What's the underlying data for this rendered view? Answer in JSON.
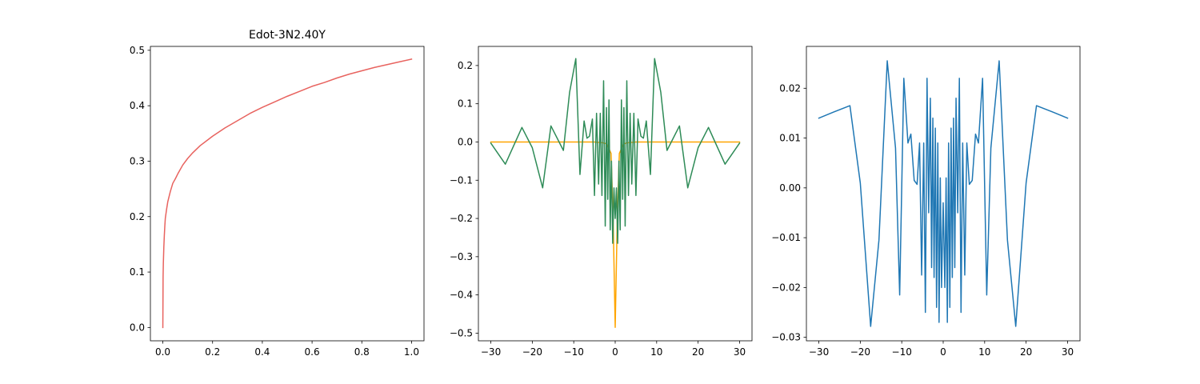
{
  "chart_data": [
    {
      "type": "line",
      "title": "Edot-3N2.40Y",
      "xlim": [
        -0.05,
        1.05
      ],
      "ylim": [
        -0.024,
        0.507
      ],
      "xticks": [
        0.0,
        0.2,
        0.4,
        0.6,
        0.8,
        1.0
      ],
      "xtick_labels": [
        "0.0",
        "0.2",
        "0.4",
        "0.6",
        "0.8",
        "1.0"
      ],
      "yticks": [
        0.0,
        0.1,
        0.2,
        0.3,
        0.4,
        0.5
      ],
      "ytick_labels": [
        "0.0",
        "0.1",
        "0.2",
        "0.3",
        "0.4",
        "0.5"
      ],
      "grid": false,
      "series": [
        {
          "color": "#e8635f",
          "x": [
            0,
            0.001,
            0.002,
            0.004,
            0.006,
            0.008,
            0.01,
            0.015,
            0.02,
            0.03,
            0.04,
            0.05,
            0.06,
            0.08,
            0.1,
            0.12,
            0.15,
            0.2,
            0.25,
            0.3,
            0.35,
            0.4,
            0.45,
            0.5,
            0.55,
            0.6,
            0.65,
            0.7,
            0.75,
            0.8,
            0.85,
            0.9,
            0.95,
            1.0
          ],
          "y": [
            0,
            0.091,
            0.115,
            0.145,
            0.166,
            0.183,
            0.197,
            0.213,
            0.227,
            0.245,
            0.26,
            0.268,
            0.277,
            0.293,
            0.305,
            0.315,
            0.328,
            0.345,
            0.36,
            0.373,
            0.386,
            0.397,
            0.407,
            0.417,
            0.426,
            0.435,
            0.442,
            0.45,
            0.457,
            0.463,
            0.469,
            0.474,
            0.479,
            0.484
          ]
        }
      ]
    },
    {
      "type": "line",
      "title": "",
      "xlim": [
        -33,
        33
      ],
      "ylim": [
        -0.52,
        0.25
      ],
      "xticks": [
        -30,
        -20,
        -10,
        0,
        10,
        20,
        30
      ],
      "xtick_labels": [
        "−30",
        "−20",
        "−10",
        "0",
        "10",
        "20",
        "30"
      ],
      "yticks": [
        -0.5,
        -0.4,
        -0.3,
        -0.2,
        -0.1,
        0.0,
        0.1,
        0.2
      ],
      "ytick_labels": [
        "−0.5",
        "−0.4",
        "−0.3",
        "−0.2",
        "−0.1",
        "0.0",
        "0.1",
        "0.2"
      ],
      "grid": false,
      "series": [
        {
          "color": "#ffa500",
          "x": [
            -30,
            -5,
            -3,
            -2,
            -1,
            -0.5,
            0,
            0.5,
            1,
            2,
            3,
            5,
            30
          ],
          "y": [
            0,
            0,
            -0.002,
            -0.005,
            -0.03,
            -0.2,
            -0.485,
            -0.2,
            -0.03,
            -0.005,
            -0.002,
            0,
            0
          ]
        },
        {
          "color": "#2e8b57",
          "x": [
            -30,
            -26.5,
            -22.5,
            -20,
            -17.5,
            -15.5,
            -12.5,
            -11,
            -9.5,
            -8.5,
            -7.5,
            -6.8,
            -6.2,
            -5.5,
            -5,
            -4.5,
            -4,
            -3.6,
            -3.2,
            -2.8,
            -2.4,
            -2.1,
            -1.8,
            -1.5,
            -1.2,
            -0.9,
            -0.6,
            -0.3,
            0,
            0.3,
            0.6,
            0.9,
            1.2,
            1.5,
            1.8,
            2.1,
            2.4,
            2.8,
            3.2,
            3.6,
            4,
            4.5,
            5,
            5.5,
            6.2,
            6.8,
            7.5,
            8.5,
            9.5,
            11,
            12.5,
            15.5,
            17.5,
            20,
            22.5,
            26.5,
            30
          ],
          "y": [
            -0.003,
            -0.058,
            0.038,
            -0.015,
            -0.12,
            0.042,
            -0.022,
            0.13,
            0.218,
            -0.085,
            0.055,
            0.01,
            0.015,
            0.06,
            -0.14,
            0.075,
            -0.11,
            0.075,
            -0.14,
            0.16,
            -0.22,
            0.09,
            -0.15,
            0.11,
            -0.23,
            -0.05,
            -0.265,
            -0.12,
            -0.2,
            -0.12,
            -0.265,
            -0.05,
            -0.23,
            0.11,
            -0.15,
            0.09,
            -0.22,
            0.16,
            -0.14,
            0.075,
            -0.11,
            0.075,
            -0.14,
            0.06,
            0.015,
            0.01,
            0.055,
            -0.085,
            0.218,
            0.13,
            -0.022,
            0.042,
            -0.12,
            -0.015,
            0.038,
            -0.058,
            -0.003
          ]
        }
      ]
    },
    {
      "type": "line",
      "title": "",
      "xlim": [
        -33,
        33
      ],
      "ylim": [
        -0.0307,
        0.0284
      ],
      "xticks": [
        -30,
        -20,
        -10,
        0,
        10,
        20,
        30
      ],
      "xtick_labels": [
        "−30",
        "−20",
        "−10",
        "0",
        "10",
        "20",
        "30"
      ],
      "yticks": [
        -0.03,
        -0.02,
        -0.01,
        0.0,
        0.01,
        0.02
      ],
      "ytick_labels": [
        "−0.03",
        "−0.02",
        "−0.01",
        "0.00",
        "0.01",
        "0.02"
      ],
      "grid": false,
      "series": [
        {
          "color": "#1f77b4",
          "x": [
            -30,
            -26.5,
            -22.5,
            -20,
            -17.5,
            -15.5,
            -13.5,
            -11.5,
            -10.5,
            -9.5,
            -8.5,
            -7.8,
            -7,
            -6.3,
            -5.7,
            -5.2,
            -4.7,
            -4.3,
            -3.9,
            -3.5,
            -3.1,
            -2.8,
            -2.5,
            -2.2,
            -1.9,
            -1.6,
            -1.3,
            -1.0,
            -0.7,
            -0.4,
            0,
            0.4,
            0.7,
            1.0,
            1.3,
            1.6,
            1.9,
            2.2,
            2.5,
            2.8,
            3.1,
            3.5,
            3.9,
            4.3,
            4.7,
            5.2,
            5.7,
            6.3,
            7,
            7.8,
            8.5,
            9.5,
            10.5,
            11.5,
            13.5,
            15.5,
            17.5,
            20,
            22.5,
            26.5,
            30
          ],
          "y": [
            0.014,
            0.0152,
            0.0165,
            0.001,
            -0.0278,
            -0.0105,
            0.0255,
            0.008,
            -0.0215,
            0.022,
            0.009,
            0.0108,
            0.0015,
            0.0007,
            0.009,
            -0.0175,
            0.009,
            -0.025,
            0.022,
            -0.005,
            0.018,
            -0.016,
            0.014,
            -0.018,
            0.012,
            -0.024,
            0.009,
            -0.027,
            0.002,
            -0.02,
            -0.003,
            -0.02,
            0.002,
            -0.027,
            0.009,
            -0.024,
            0.012,
            -0.018,
            0.014,
            -0.016,
            0.018,
            -0.005,
            0.022,
            -0.025,
            0.009,
            -0.0175,
            0.009,
            0.0007,
            0.0015,
            0.0108,
            0.009,
            0.022,
            -0.0215,
            0.008,
            0.0255,
            -0.0105,
            -0.0278,
            0.001,
            0.0165,
            0.0152,
            0.014
          ]
        }
      ]
    }
  ]
}
